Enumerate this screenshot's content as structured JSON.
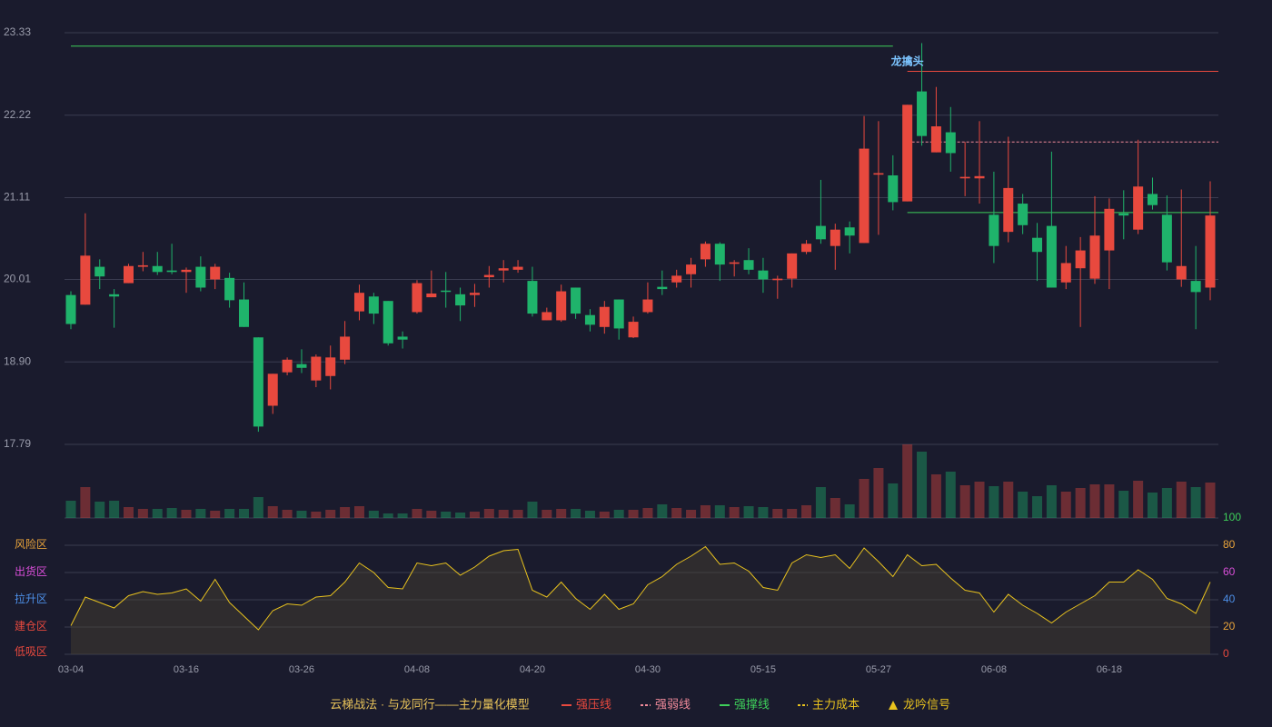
{
  "chart_data": {
    "type": "candlestick",
    "categories": [
      "03-04",
      null,
      null,
      null,
      null,
      null,
      null,
      null,
      "03-16",
      null,
      null,
      null,
      null,
      null,
      null,
      null,
      "03-26",
      null,
      null,
      null,
      null,
      null,
      null,
      null,
      "04-08",
      null,
      null,
      null,
      null,
      null,
      null,
      null,
      "04-20",
      null,
      null,
      null,
      null,
      null,
      null,
      null,
      "04-30",
      null,
      null,
      null,
      null,
      null,
      null,
      null,
      "05-15",
      null,
      null,
      null,
      null,
      null,
      null,
      null,
      "05-27",
      null,
      null,
      null,
      null,
      null,
      null,
      null,
      "06-08",
      null,
      null,
      null,
      null,
      null,
      null,
      null,
      "06-18",
      null,
      null,
      null,
      null,
      null,
      null,
      null
    ],
    "open": [
      19.8,
      19.67,
      20.18,
      19.81,
      19.96,
      20.18,
      20.19,
      20.13,
      20.11,
      20.18,
      20.01,
      20.03,
      19.74,
      19.23,
      18.31,
      18.76,
      18.87,
      18.65,
      18.71,
      18.93,
      19.58,
      19.78,
      19.72,
      19.24,
      19.57,
      19.77,
      19.86,
      19.81,
      19.8,
      20.04,
      20.13,
      20.14,
      19.99,
      19.46,
      19.46,
      19.9,
      19.53,
      19.37,
      19.74,
      19.23,
      19.57,
      19.91,
      19.97,
      20.08,
      20.28,
      20.49,
      20.22,
      20.27,
      20.13,
      20.0,
      20.02,
      20.38,
      20.73,
      20.46,
      20.71,
      20.5,
      21.42,
      21.41,
      21.06,
      22.54,
      21.72,
      21.99,
      21.37,
      21.37,
      20.88,
      20.65,
      21.03,
      20.57,
      20.73,
      19.97,
      20.16,
      20.02,
      20.4,
      20.9,
      20.68,
      21.16,
      20.88,
      20.01,
      19.99,
      19.9
    ],
    "close": [
      19.41,
      20.33,
      20.05,
      19.78,
      20.19,
      20.2,
      20.11,
      20.11,
      20.14,
      19.9,
      20.18,
      19.73,
      19.37,
      18.03,
      18.74,
      18.93,
      18.82,
      18.97,
      18.96,
      19.24,
      19.83,
      19.55,
      19.15,
      19.2,
      19.96,
      19.82,
      19.85,
      19.66,
      19.83,
      20.07,
      20.16,
      20.18,
      19.55,
      19.57,
      19.85,
      19.55,
      19.4,
      19.64,
      19.35,
      19.44,
      19.74,
      19.88,
      20.06,
      20.21,
      20.49,
      20.21,
      20.24,
      20.14,
      20.01,
      20.02,
      20.36,
      20.49,
      20.55,
      20.68,
      20.6,
      21.77,
      21.44,
      21.05,
      22.36,
      21.94,
      22.07,
      21.71,
      21.39,
      21.4,
      20.46,
      21.24,
      20.74,
      20.38,
      19.9,
      20.23,
      20.4,
      20.6,
      20.96,
      20.87,
      21.26,
      21.01,
      20.24,
      20.19,
      19.84,
      20.87
    ],
    "high": [
      19.85,
      20.9,
      20.28,
      19.88,
      20.22,
      20.38,
      20.38,
      20.49,
      20.17,
      20.32,
      20.22,
      20.1,
      19.97,
      19.23,
      18.74,
      18.96,
      19.07,
      19.0,
      19.12,
      19.45,
      19.94,
      19.83,
      19.72,
      19.31,
      20.0,
      20.13,
      20.11,
      19.9,
      19.95,
      20.19,
      20.27,
      20.27,
      20.18,
      19.63,
      19.94,
      19.9,
      19.61,
      19.72,
      19.74,
      19.51,
      19.97,
      20.13,
      20.14,
      20.3,
      20.52,
      20.51,
      20.27,
      20.43,
      20.3,
      20.06,
      20.36,
      20.54,
      21.35,
      20.76,
      20.79,
      22.21,
      22.14,
      21.68,
      22.36,
      23.19,
      22.6,
      22.33,
      21.86,
      22.14,
      21.46,
      21.93,
      21.16,
      20.77,
      21.73,
      20.46,
      20.58,
      21.13,
      21.1,
      21.21,
      21.89,
      21.38,
      21.14,
      21.22,
      20.46,
      21.33
    ],
    "low": [
      19.34,
      19.67,
      19.88,
      19.36,
      19.96,
      20.12,
      20.07,
      20.08,
      19.83,
      19.85,
      19.88,
      19.63,
      19.37,
      17.96,
      18.2,
      18.72,
      18.75,
      18.56,
      18.53,
      18.87,
      19.46,
      19.41,
      19.12,
      19.08,
      19.55,
      19.77,
      19.63,
      19.45,
      19.64,
      19.9,
      19.97,
      20.1,
      19.51,
      19.46,
      19.44,
      19.48,
      19.31,
      19.28,
      19.2,
      19.22,
      19.55,
      19.8,
      19.9,
      19.9,
      20.18,
      19.99,
      20.05,
      20.08,
      19.83,
      19.75,
      19.9,
      20.35,
      20.49,
      20.14,
      20.36,
      20.5,
      20.61,
      20.94,
      21.06,
      21.81,
      21.72,
      21.46,
      21.13,
      21.03,
      20.23,
      20.51,
      20.62,
      19.99,
      19.9,
      19.88,
      19.37,
      19.95,
      19.88,
      20.55,
      20.62,
      20.95,
      20.13,
      19.91,
      19.34,
      19.73
    ],
    "volume": [
      19,
      34,
      18,
      19,
      12,
      10,
      10,
      11,
      9,
      10,
      8,
      10,
      10,
      23,
      13,
      9,
      8,
      7,
      9,
      12,
      13,
      8,
      5,
      5,
      10,
      8,
      7,
      6,
      7,
      10,
      9,
      9,
      18,
      9,
      10,
      10,
      8,
      7,
      9,
      9,
      11,
      15,
      11,
      9,
      14,
      14,
      12,
      13,
      12,
      10,
      10,
      14,
      34,
      22,
      15,
      43,
      55,
      38,
      81,
      73,
      48,
      51,
      36,
      40,
      35,
      40,
      29,
      24,
      36,
      29,
      33,
      37,
      37,
      30,
      41,
      28,
      33,
      40,
      34,
      39
    ],
    "up_color": "#e8493e",
    "down_color": "#1fb36b",
    "ylim": [
      17.79,
      23.33
    ],
    "yticks": [
      17.79,
      {
        "value": 18.9,
        "label": "18.90"
      },
      20.01,
      21.11,
      22.22,
      23.33
    ],
    "grid": true,
    "levels": [
      {
        "value": 23.15,
        "from": 0,
        "to": 57,
        "color": "#3ecf5a",
        "style": "solid"
      },
      {
        "value": 22.81,
        "from": 58,
        "to": 79,
        "color": "#e8493e",
        "style": "solid"
      },
      {
        "value": 21.86,
        "from": 58,
        "to": 79,
        "color": "#f08a9a",
        "style": "dashed"
      },
      {
        "value": 20.91,
        "from": 58,
        "to": 79,
        "color": "#3ecf5a",
        "style": "solid"
      }
    ],
    "annotation": {
      "text": "龙擒头",
      "index": 58,
      "color": "#7cc4ff"
    },
    "indicator": {
      "values": [
        21,
        42,
        38,
        34,
        43,
        46,
        44,
        45,
        48,
        39,
        55,
        38,
        28,
        18,
        32,
        37,
        36,
        42,
        43,
        53,
        67,
        60,
        49,
        48,
        67,
        65,
        67,
        58,
        64,
        72,
        76,
        77,
        47,
        42,
        53,
        41,
        33,
        44,
        33,
        37,
        51,
        57,
        66,
        72,
        79,
        66,
        67,
        61,
        49,
        47,
        67,
        73,
        71,
        73,
        63,
        78,
        68,
        57,
        73,
        65,
        66,
        56,
        47,
        45,
        31,
        44,
        36,
        30,
        23,
        31,
        37,
        43,
        53,
        53,
        62,
        55,
        41,
        37,
        30,
        53
      ],
      "color": "#e8c21e",
      "ylim": [
        0,
        100
      ],
      "yticks": [
        0,
        20,
        40,
        60,
        80,
        100
      ],
      "ytick_colors": [
        "#e8493e",
        "#e8a33a",
        "#4d8fe8",
        "#d94fd9",
        "#e8a33a",
        "#3ecf5a"
      ],
      "zones": [
        {
          "label": "低吸区",
          "value": 0,
          "color": "#e8493e"
        },
        {
          "label": "建仓区",
          "value": 20,
          "color": "#e8493e"
        },
        {
          "label": "拉升区",
          "value": 40,
          "color": "#4d8fe8"
        },
        {
          "label": "出货区",
          "value": 60,
          "color": "#d94fd9"
        },
        {
          "label": "风险区",
          "value": 80,
          "color": "#e8a33a"
        }
      ]
    },
    "legend": {
      "title": "云梯战法 · 与龙同行——主力量化模型",
      "title_color": "#e8c35a",
      "items": [
        {
          "name": "强压线",
          "color": "#e8493e",
          "style": "solid"
        },
        {
          "name": "强弱线",
          "color": "#f08a9a",
          "style": "dashed"
        },
        {
          "name": "强撑线",
          "color": "#3ecf5a",
          "style": "solid"
        },
        {
          "name": "主力成本",
          "color": "#e8c21e",
          "style": "dashed"
        },
        {
          "name": "龙吟信号",
          "color": "#e8c21e",
          "style": "triangle"
        }
      ]
    }
  }
}
